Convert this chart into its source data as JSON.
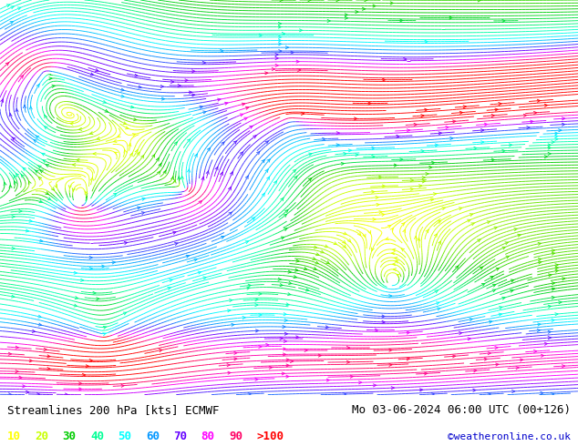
{
  "title_left": "Streamlines 200 hPa [kts] ECMWF",
  "title_right": "Mo 03-06-2024 06:00 UTC (00+126)",
  "credit": "©weatheronline.co.uk",
  "legend_values": [
    "10",
    "20",
    "30",
    "40",
    "50",
    "60",
    "70",
    "80",
    "90",
    ">100"
  ],
  "legend_colors": [
    "#ffff00",
    "#c8ff00",
    "#00cc00",
    "#00ff96",
    "#00ffff",
    "#0096ff",
    "#6400ff",
    "#ff00ff",
    "#ff0064",
    "#ff0000"
  ],
  "bg_color": "#ffffff",
  "text_color": "#000000",
  "font_size_title": 9,
  "font_size_legend": 9,
  "font_size_credit": 8,
  "colormap_hex": [
    "#ffff00",
    "#c8ff00",
    "#00cc00",
    "#00ff96",
    "#00ffff",
    "#0096ff",
    "#6400ff",
    "#ff00ff",
    "#ff0064",
    "#ff0000"
  ],
  "speed_max_kts": 100
}
